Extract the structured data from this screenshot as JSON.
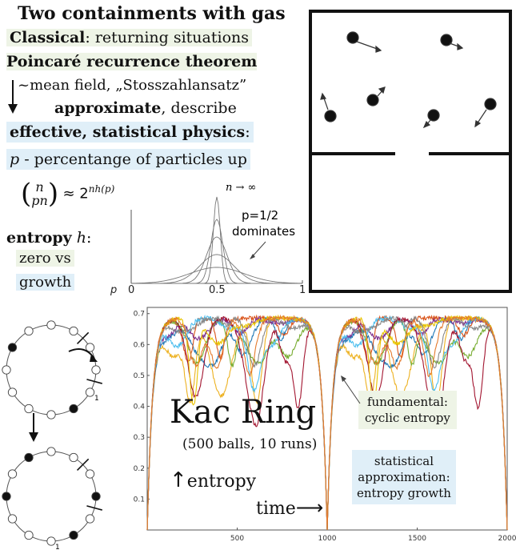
{
  "header": {
    "title": "Two containments with gas",
    "line1_bold": "Classical",
    "line1_rest": ": returning situations",
    "line2": "Poincaré recurrence theorem",
    "line3": "~mean field, „Stosszahlansatz”",
    "line4_bold": "approximate",
    "line4_rest": ", describe",
    "line5_bold": "effective, statistical physics",
    "line5_rest": ":",
    "line6_var": "p",
    "line6_rest": " - percentange of particles up"
  },
  "formula": {
    "n_top": "n",
    "n_bottom": "pn",
    "rhs": "≈ 2",
    "exponent": "nh(p)"
  },
  "entropy_section": {
    "label_bold": "entropy",
    "label_var": " h",
    "label_colon": ":",
    "zero": "zero vs",
    "growth": "growth"
  },
  "small_plot": {
    "limit_label": "n → ∞",
    "note_line1": "p=1/2",
    "note_line2": "dominates",
    "axis_var": "p",
    "ticks": [
      "0",
      "0.5",
      "1"
    ]
  },
  "kac": {
    "title": "Kac Ring",
    "subtitle": "(500 balls, 10 runs)",
    "entropy_label": "entropy",
    "time_label": "time",
    "fundamental_line1": "fundamental:",
    "fundamental_line2": "cyclic entropy",
    "statistical_line1": "statistical",
    "statistical_line2": "approximation:",
    "statistical_line3": "entropy growth",
    "ring_marker": "1"
  },
  "chart_data": {
    "type": "line",
    "title": "",
    "xlabel": "",
    "ylabel": "",
    "xlim": [
      0,
      2000
    ],
    "ylim": [
      0,
      0.72
    ],
    "xticks": [
      500,
      1000,
      1500,
      2000
    ],
    "yticks": [
      0.1,
      0.2,
      0.3,
      0.4,
      0.5,
      0.6,
      0.7
    ],
    "period": 1000,
    "max_entropy": 0.693,
    "runs": 10,
    "colors": [
      "#1f77b4",
      "#d95319",
      "#edb120",
      "#7e2f8e",
      "#77ac30",
      "#4dbeee",
      "#a2142f",
      "#e8c400",
      "#888888",
      "#e47a2e"
    ]
  }
}
